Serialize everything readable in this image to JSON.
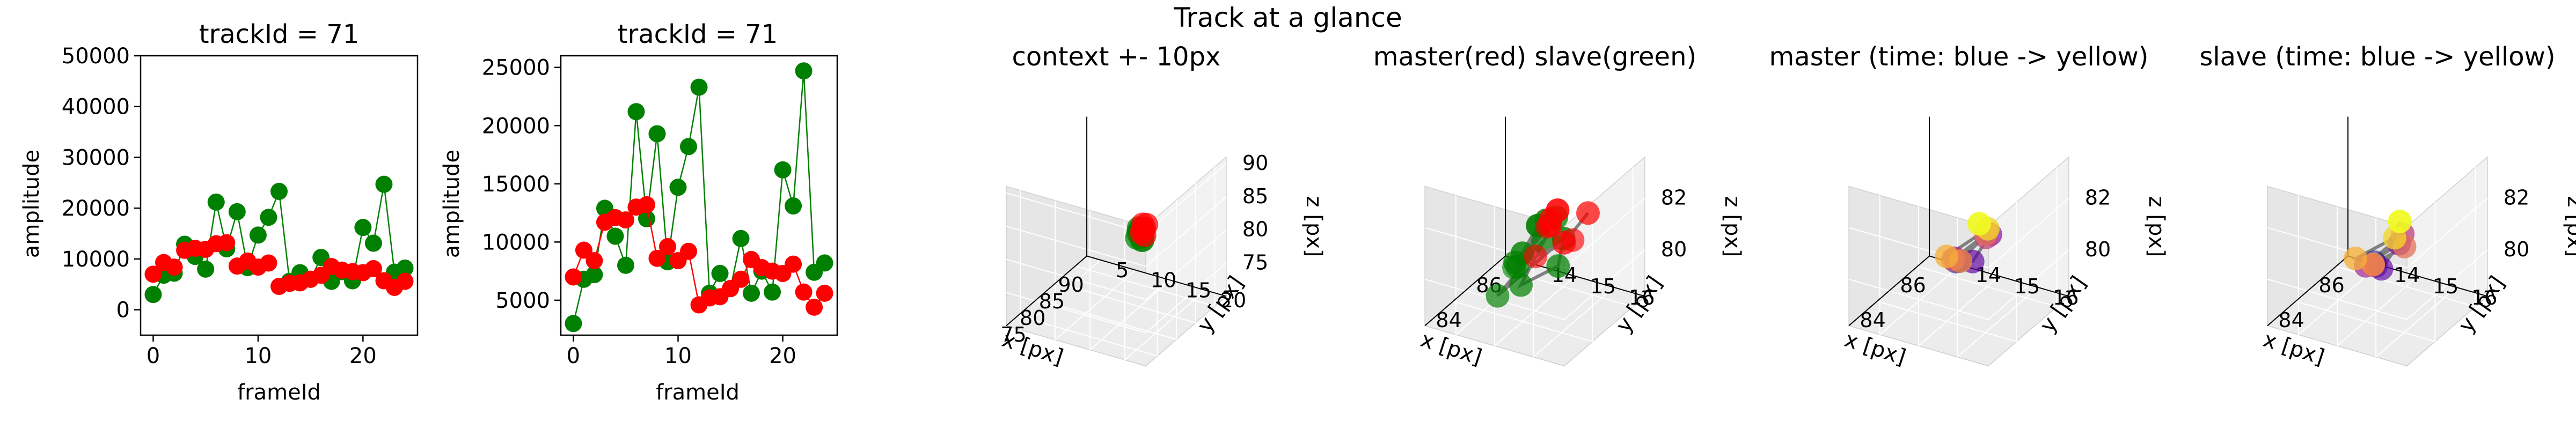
{
  "figure": {
    "suptitle": "Track at a glance"
  },
  "chart_data": [
    {
      "type": "scatter",
      "title": "trackId = 71",
      "xlabel": "frameId",
      "ylabel": "amplitude",
      "xlim": [
        -1.2,
        25.2
      ],
      "ylim": [
        -5000,
        50000
      ],
      "xticks": [
        "0",
        "10",
        "20"
      ],
      "yticks": [
        "0",
        "10000",
        "20000",
        "30000",
        "40000",
        "50000"
      ],
      "series": [
        {
          "color": "#008000",
          "lines": true,
          "x": [
            0,
            1,
            2,
            3,
            4,
            5,
            6,
            7,
            8,
            9,
            10,
            11,
            12,
            13,
            14,
            15,
            16,
            17,
            18,
            19,
            20,
            21,
            22,
            23,
            24
          ],
          "y": [
            3000,
            6800,
            7200,
            12900,
            10500,
            8000,
            21200,
            12000,
            19300,
            8300,
            14700,
            18200,
            23300,
            5600,
            7300,
            6000,
            10300,
            5600,
            7500,
            5700,
            16200,
            13100,
            24700,
            7400,
            8200
          ]
        },
        {
          "color": "#ff0000",
          "lines": false,
          "x": [
            0,
            1,
            2,
            3,
            4,
            5,
            6,
            7,
            8,
            9,
            10,
            11,
            12,
            13,
            14,
            15,
            16,
            17,
            18,
            19,
            20,
            21,
            22,
            23,
            24
          ],
          "y": [
            7000,
            9300,
            8400,
            11700,
            12100,
            11900,
            13000,
            13200,
            8600,
            9600,
            8400,
            9200,
            4600,
            5200,
            5300,
            6000,
            6800,
            8500,
            7800,
            7500,
            7300,
            8100,
            5700,
            4400,
            5600
          ]
        }
      ]
    },
    {
      "type": "scatter",
      "title": "trackId = 71",
      "xlabel": "frameId",
      "ylabel": "amplitude",
      "xlim": [
        -1.2,
        25.2
      ],
      "ylim": [
        2000,
        26000
      ],
      "xticks": [
        "0",
        "10",
        "20"
      ],
      "yticks": [
        "5000",
        "10000",
        "15000",
        "20000",
        "25000"
      ],
      "series": [
        {
          "color": "#008000",
          "lines": true,
          "x": [
            0,
            1,
            2,
            3,
            4,
            5,
            6,
            7,
            8,
            9,
            10,
            11,
            12,
            13,
            14,
            15,
            16,
            17,
            18,
            19,
            20,
            21,
            22,
            23,
            24
          ],
          "y": [
            3000,
            6800,
            7200,
            12900,
            10500,
            8000,
            21200,
            12000,
            19300,
            8300,
            14700,
            18200,
            23300,
            5600,
            7300,
            6000,
            10300,
            5600,
            7500,
            5700,
            16200,
            13100,
            24700,
            7400,
            8200
          ]
        },
        {
          "color": "#ff0000",
          "lines": true,
          "x": [
            0,
            1,
            2,
            3,
            4,
            5,
            6,
            7,
            8,
            9,
            10,
            11,
            12,
            13,
            14,
            15,
            16,
            17,
            18,
            19,
            20,
            21,
            22,
            23,
            24
          ],
          "y": [
            7000,
            9300,
            8400,
            11700,
            12100,
            11900,
            13000,
            13200,
            8600,
            9600,
            8400,
            9200,
            4600,
            5200,
            5300,
            6000,
            6800,
            8500,
            7800,
            7500,
            7300,
            8100,
            5700,
            4400,
            5600
          ]
        }
      ]
    },
    {
      "type": "scatter3d",
      "title": "context +- 10px",
      "xlabel": "x [px]",
      "ylabel": "y [px]",
      "zlabel": "z [px]",
      "xlim": [
        72,
        93
      ],
      "ylim": [
        3,
        23
      ],
      "zlim": [
        70,
        91
      ],
      "xticks": [
        75,
        80,
        85,
        90
      ],
      "yticks": [
        5,
        10,
        15,
        20
      ],
      "zticks": [
        75,
        80,
        85,
        90
      ],
      "series": [
        {
          "color": "#008000",
          "x": [
            84.6,
            84.8,
            85.0,
            84.7,
            85.2,
            84.9,
            85.4,
            85.1
          ],
          "y": [
            14.8,
            15.1,
            15.3,
            15.0,
            14.9,
            15.5,
            15.2,
            14.7
          ],
          "z": [
            80.5,
            81.2,
            80.1,
            82.0,
            81.5,
            80.8,
            79.9,
            81.0
          ]
        },
        {
          "color": "#ff0000",
          "x": [
            85.8,
            85.6,
            86.0,
            85.9,
            85.7,
            86.1
          ],
          "y": [
            15.2,
            14.9,
            15.4,
            15.0,
            15.3,
            14.8
          ],
          "z": [
            81.5,
            80.8,
            82.0,
            81.0,
            80.5,
            81.8
          ]
        }
      ]
    },
    {
      "type": "scatter3d",
      "title": "master(red) slave(green)",
      "xlabel": "x [px]",
      "ylabel": "y [px]",
      "zlabel": "z [px]",
      "xlim": [
        82.6,
        86.6
      ],
      "ylim": [
        13.2,
        16.8
      ],
      "zlim": [
        78.2,
        83.6
      ],
      "xticks": [
        84,
        86
      ],
      "yticks": [
        14,
        15,
        16
      ],
      "zticks": [
        80,
        82
      ],
      "series": [
        {
          "color": "#008000",
          "x": [
            83.2,
            83.6,
            84.0,
            84.2,
            84.5,
            84.8,
            83.9,
            84.3,
            84.6,
            84.1,
            84.9,
            85.1
          ],
          "y": [
            15.8,
            15.2,
            14.8,
            15.5,
            14.6,
            15.1,
            14.4,
            15.9,
            15.6,
            14.9,
            15.4,
            14.2
          ],
          "z": [
            82.8,
            81.2,
            80.4,
            82.2,
            79.8,
            80.8,
            79.0,
            81.6,
            80.2,
            79.5,
            81.8,
            79.2
          ]
        },
        {
          "color": "#ff0000",
          "x": [
            84.0,
            84.6,
            85.2,
            85.6,
            85.9,
            85.4,
            84.9,
            85.7
          ],
          "y": [
            15.9,
            15.4,
            15.1,
            14.8,
            15.3,
            14.6,
            15.6,
            15.8
          ],
          "z": [
            82.9,
            81.7,
            81.4,
            80.7,
            80.2,
            79.6,
            80.9,
            81.6
          ]
        }
      ]
    },
    {
      "type": "scatter3d",
      "title": "master (time: blue -> yellow)",
      "xlabel": "x [px]",
      "ylabel": "y [px]",
      "zlabel": "z [px]",
      "xlim": [
        82.6,
        86.6
      ],
      "ylim": [
        13.2,
        16.8
      ],
      "zlim": [
        78.2,
        83.6
      ],
      "xticks": [
        84,
        86
      ],
      "yticks": [
        14,
        15,
        16
      ],
      "zticks": [
        80,
        82
      ],
      "colormap": "plasma",
      "series": [
        {
          "color": "#888888",
          "x": [
            85.8,
            85.2,
            84.9,
            85.4,
            84.6,
            85.0,
            84.3,
            84.8,
            84.1,
            83.8,
            84.5,
            83.5
          ],
          "y": [
            14.3,
            14.7,
            15.2,
            15.4,
            14.9,
            15.5,
            15.0,
            15.6,
            15.3,
            15.1,
            15.8,
            16.1
          ],
          "z": [
            79.0,
            79.6,
            80.0,
            80.8,
            80.2,
            81.0,
            80.4,
            81.3,
            80.6,
            80.9,
            81.8,
            82.8
          ]
        }
      ]
    },
    {
      "type": "scatter3d",
      "title": "slave (time: blue -> yellow)",
      "xlabel": "x [px]",
      "ylabel": "y [px]",
      "zlabel": "z [px]",
      "xlim": [
        82.6,
        86.6
      ],
      "ylim": [
        13.2,
        16.8
      ],
      "zlim": [
        78.2,
        83.6
      ],
      "xticks": [
        84,
        86
      ],
      "yticks": [
        14,
        15,
        16
      ],
      "zticks": [
        80,
        82
      ],
      "colormap": "plasma",
      "series": [
        {
          "color": "#888888",
          "x": [
            86.0,
            85.3,
            84.8,
            85.1,
            84.4,
            84.9,
            84.2,
            84.6,
            84.0,
            83.7,
            84.3,
            83.4
          ],
          "y": [
            14.2,
            14.6,
            15.0,
            15.3,
            14.8,
            15.5,
            15.1,
            15.7,
            15.2,
            14.9,
            15.6,
            16.2
          ],
          "z": [
            78.8,
            79.3,
            79.7,
            80.6,
            80.0,
            81.2,
            80.3,
            81.0,
            80.5,
            80.8,
            81.5,
            83.0
          ]
        }
      ]
    }
  ]
}
